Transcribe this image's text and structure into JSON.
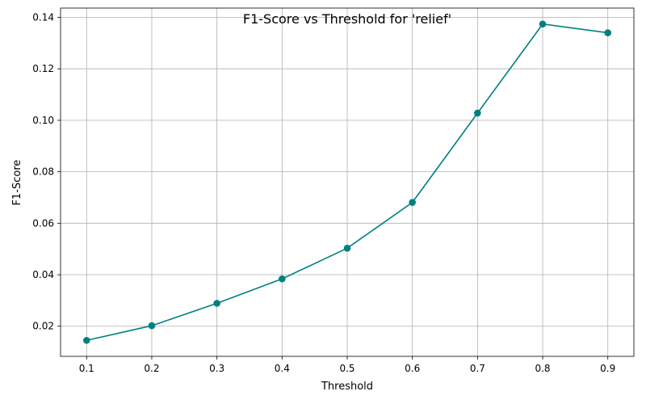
{
  "chart_data": {
    "type": "line",
    "title": "F1-Score vs Threshold for 'relief'",
    "xlabel": "Threshold",
    "ylabel": "F1-Score",
    "x": [
      0.1,
      0.2,
      0.3,
      0.4,
      0.5,
      0.6,
      0.7,
      0.8,
      0.9
    ],
    "series": [
      {
        "values": [
          0.0145,
          0.0202,
          0.0289,
          0.0384,
          0.0503,
          0.0681,
          0.1028,
          0.1374,
          0.134
        ]
      }
    ],
    "xlim": [
      0.06,
      0.94
    ],
    "ylim": [
      0.0083,
      0.1436
    ],
    "xticks": [
      0.1,
      0.2,
      0.3,
      0.4,
      0.5,
      0.6,
      0.7,
      0.8,
      0.9
    ],
    "xtick_labels": [
      "0.1",
      "0.2",
      "0.3",
      "0.4",
      "0.5",
      "0.6",
      "0.7",
      "0.8",
      "0.9"
    ],
    "yticks": [
      0.02,
      0.04,
      0.06,
      0.08,
      0.1,
      0.12,
      0.14
    ],
    "ytick_labels": [
      "0.02",
      "0.04",
      "0.06",
      "0.08",
      "0.10",
      "0.12",
      "0.14"
    ],
    "grid": true,
    "line_color": "#008080",
    "marker": "circle"
  }
}
